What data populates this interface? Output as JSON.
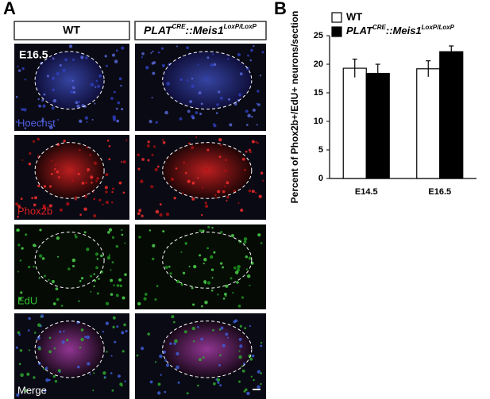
{
  "panel_a": {
    "label": "A",
    "columns": [
      "WT",
      [
        "PLAT",
        "CRE",
        "::Meis1",
        "LoxP/LoxP"
      ]
    ],
    "stage": "E16.5",
    "rows": [
      "Hoechst",
      "Phox2b",
      "EdU",
      "Merge"
    ]
  },
  "panel_b": {
    "label": "B"
  },
  "chart_data": {
    "type": "bar",
    "y_label": "Percent of Phox2b+/EdU+ neurons/section",
    "categories": [
      "E14.5",
      "E16.5"
    ],
    "series": [
      {
        "name": "WT",
        "color": "#ffffff",
        "values": [
          19.3,
          19.2
        ],
        "errors": [
          1.6,
          1.4
        ]
      },
      {
        "name": [
          "PLAT",
          "CRE",
          "::Meis1",
          "LoxP/LoxP"
        ],
        "color": "#000000",
        "values": [
          18.4,
          22.2
        ],
        "errors": [
          1.6,
          1.0
        ]
      }
    ],
    "ylim": [
      0,
      25
    ],
    "yticks": [
      0,
      5,
      10,
      15,
      20,
      25
    ]
  }
}
